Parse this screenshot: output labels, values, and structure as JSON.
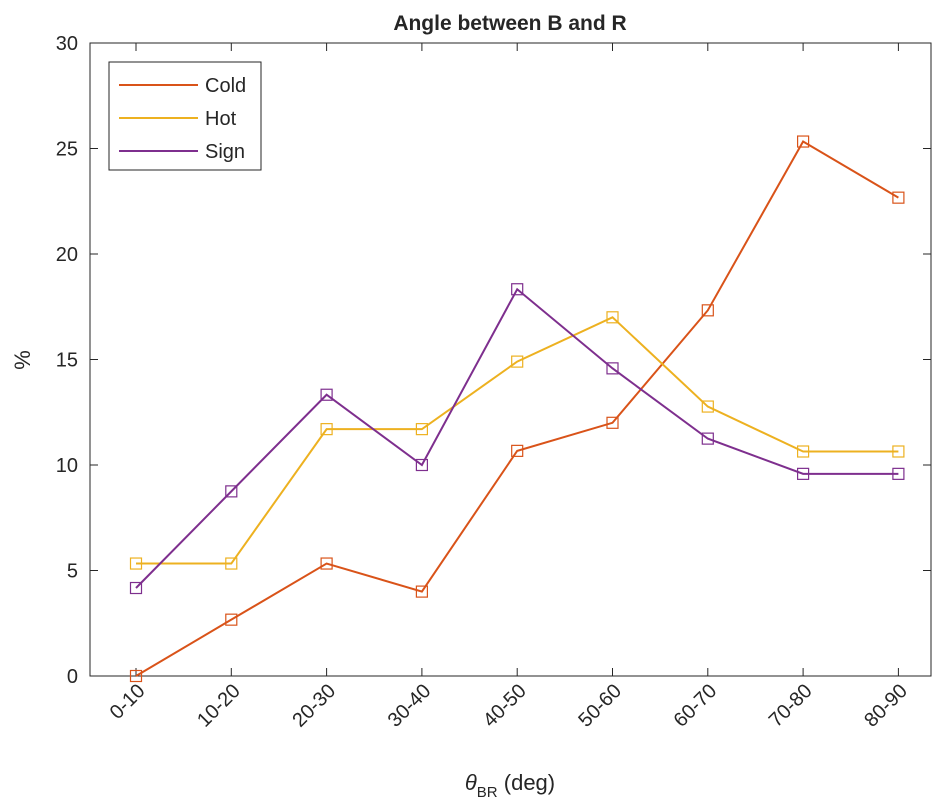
{
  "chart_data": {
    "type": "line",
    "title": "Angle between B and R",
    "xlabel": "θ",
    "xlabel_sub": "BR",
    "xlabel_suffix": " (deg)",
    "ylabel": "%",
    "categories": [
      "0-10",
      "10-20",
      "20-30",
      "30-40",
      "40-50",
      "50-60",
      "60-70",
      "70-80",
      "80-90"
    ],
    "ylim": [
      0,
      30
    ],
    "yticks": [
      0,
      5,
      10,
      15,
      20,
      25,
      30
    ],
    "grid": false,
    "legend_position": "top-left",
    "marker": "square",
    "series": [
      {
        "name": "Cold",
        "color": "#D95319",
        "values": [
          0.0,
          2.67,
          5.33,
          4.0,
          10.67,
          12.0,
          17.33,
          25.33,
          22.67
        ]
      },
      {
        "name": "Hot",
        "color": "#EDB120",
        "values": [
          5.33,
          5.33,
          11.7,
          11.7,
          14.9,
          17.0,
          12.77,
          10.64,
          10.64
        ]
      },
      {
        "name": "Sign",
        "color": "#7E2F8E",
        "values": [
          4.17,
          8.75,
          13.33,
          10.0,
          18.33,
          14.58,
          11.25,
          9.58,
          9.58
        ]
      }
    ]
  }
}
